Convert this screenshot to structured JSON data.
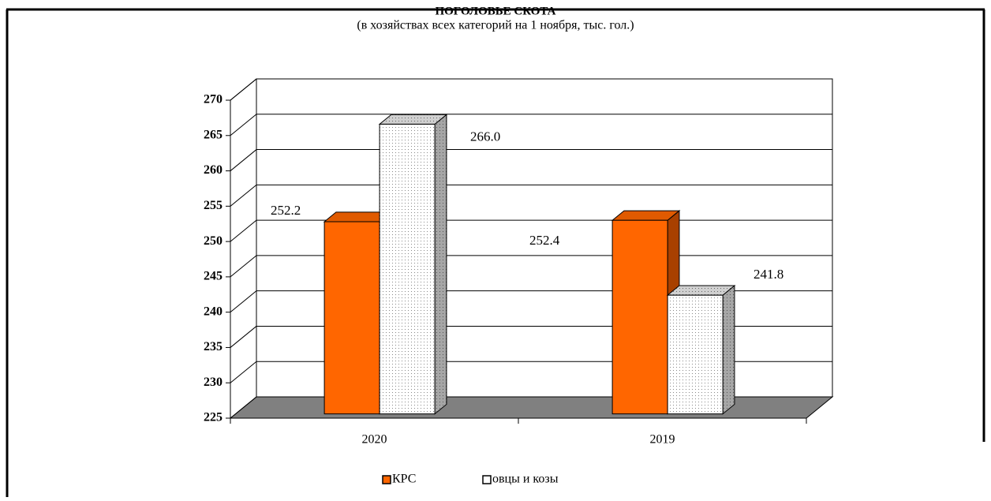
{
  "chart_data": {
    "type": "bar3d",
    "title": "ПОГОЛОВЬЕ СКОТА",
    "subtitle": "(в хозяйствах всех категорий на 1 ноября, тыс. гол.)",
    "categories": [
      "2020",
      "2019"
    ],
    "series": [
      {
        "name": "КРС",
        "color": "#ff6600",
        "values": [
          252.2,
          252.4
        ],
        "value_labels": [
          "252.2",
          "252.4"
        ]
      },
      {
        "name": "овцы и козы",
        "color": "#ffffff",
        "values": [
          266.0,
          241.8
        ],
        "value_labels": [
          "266.0",
          "241.8"
        ]
      }
    ],
    "ylim": [
      225,
      270
    ],
    "yticks": [
      225,
      230,
      235,
      240,
      245,
      250,
      255,
      260,
      265,
      270
    ],
    "grid": true,
    "legend": "bottom"
  }
}
